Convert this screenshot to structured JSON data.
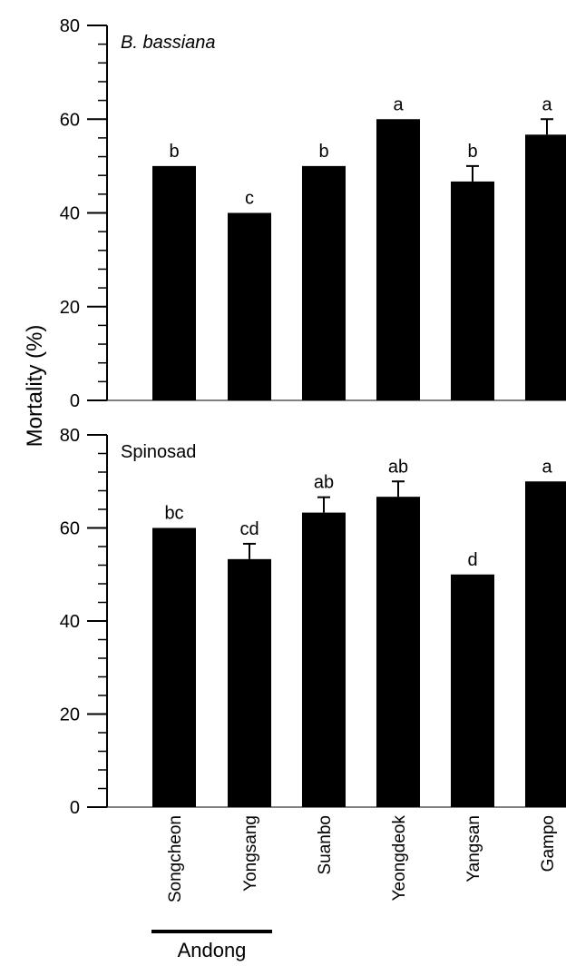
{
  "chart_data": {
    "type": "bar",
    "ylabel": "Mortality  (%)",
    "categories": [
      "Songcheon",
      "Yongsang",
      "Suanbo",
      "Yeongdeok",
      "Yangsan",
      "Gampo"
    ],
    "group_label": {
      "text": "Andong",
      "categories": [
        "Songcheon",
        "Yongsang"
      ]
    },
    "bar_color": "#000000",
    "panels": [
      {
        "title": "B. bassiana",
        "title_italic": true,
        "ylim": [
          0,
          80
        ],
        "yticks": [
          0,
          20,
          40,
          60,
          80
        ],
        "yticks_minor_step": 4,
        "values": [
          50,
          40,
          50,
          60,
          46.7,
          56.7
        ],
        "errors": [
          0,
          0,
          0,
          0,
          3.3,
          3.3
        ],
        "letters": [
          "b",
          "c",
          "b",
          "a",
          "b",
          "a"
        ]
      },
      {
        "title": "Spinosad",
        "title_italic": false,
        "ylim": [
          0,
          80
        ],
        "yticks": [
          0,
          20,
          40,
          60,
          80
        ],
        "yticks_minor_step": 4,
        "values": [
          60,
          53.3,
          63.3,
          66.7,
          50,
          70
        ],
        "errors": [
          0,
          3.3,
          3.3,
          3.3,
          0,
          0
        ],
        "letters": [
          "bc",
          "cd",
          "ab",
          "ab",
          "d",
          "a"
        ]
      }
    ]
  }
}
